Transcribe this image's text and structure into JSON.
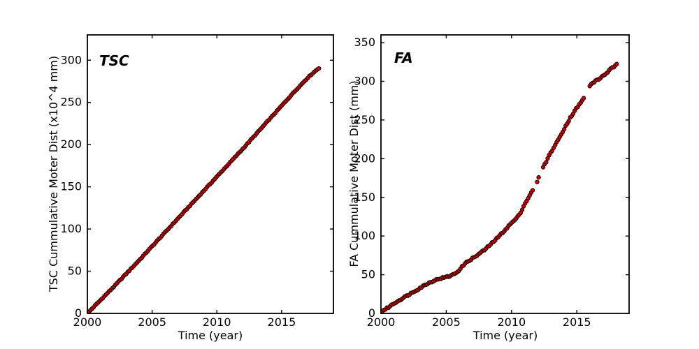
{
  "figure": {
    "background": "#ffffff",
    "text_color": "#000000",
    "axis_color": "#000000"
  },
  "chart_data": [
    {
      "id": "tsc",
      "type": "scatter",
      "title": "TSC",
      "xlabel": "Time (year)",
      "ylabel": "TSC Cummulative Moter Dist (x10^4 mm)",
      "xlim": [
        2000,
        2019
      ],
      "ylim": [
        0,
        330
      ],
      "xticks": [
        2000,
        2005,
        2010,
        2015
      ],
      "yticks": [
        0,
        50,
        100,
        150,
        200,
        250,
        300
      ],
      "grid": false,
      "legend": null,
      "marker": {
        "shape": "circle",
        "fill": "#cc0000",
        "edge": "#1a0000",
        "radius": 2.7
      },
      "sampling": {
        "step_years": 0.12,
        "jitter": 0.5
      },
      "gaps": [],
      "anchors": [
        [
          2000,
          0
        ],
        [
          2001,
          15.5
        ],
        [
          2002,
          31
        ],
        [
          2003,
          47
        ],
        [
          2004,
          63
        ],
        [
          2005,
          79.5
        ],
        [
          2006,
          96
        ],
        [
          2007,
          112.5
        ],
        [
          2008,
          129
        ],
        [
          2009,
          145.5
        ],
        [
          2010,
          162
        ],
        [
          2011,
          178.5
        ],
        [
          2012,
          195
        ],
        [
          2013,
          212
        ],
        [
          2014,
          229
        ],
        [
          2015,
          246
        ],
        [
          2016,
          263
        ],
        [
          2017,
          279
        ],
        [
          2017.4,
          284.5
        ],
        [
          2017.7,
          288.5
        ],
        [
          2017.95,
          291.5
        ]
      ]
    },
    {
      "id": "fa",
      "type": "scatter",
      "title": "FA",
      "xlabel": "Time (year)",
      "ylabel": "FA Cummulative Moter Dist (mm)",
      "xlim": [
        2000,
        2019
      ],
      "ylim": [
        0,
        360
      ],
      "xticks": [
        2000,
        2005,
        2010,
        2015
      ],
      "yticks": [
        0,
        50,
        100,
        150,
        200,
        250,
        300,
        350
      ],
      "grid": false,
      "legend": null,
      "marker": {
        "shape": "circle",
        "fill": "#cc0000",
        "edge": "#1a0000",
        "radius": 2.7
      },
      "sampling": {
        "step_years": 0.115,
        "jitter": 0.9
      },
      "gaps": [
        [
          2011.72,
          2011.92
        ],
        [
          2012.08,
          2012.38
        ],
        [
          2015.6,
          2015.93
        ]
      ],
      "anchors": [
        [
          2000,
          2
        ],
        [
          2000.5,
          7
        ],
        [
          2001,
          13
        ],
        [
          2001.5,
          18
        ],
        [
          2002,
          23
        ],
        [
          2002.5,
          28
        ],
        [
          2003,
          33
        ],
        [
          2003.5,
          38
        ],
        [
          2004,
          42
        ],
        [
          2004.5,
          45
        ],
        [
          2005,
          47
        ],
        [
          2005.4,
          49
        ],
        [
          2005.8,
          53
        ],
        [
          2006.1,
          58
        ],
        [
          2006.4,
          64
        ],
        [
          2006.8,
          69
        ],
        [
          2007.2,
          73
        ],
        [
          2007.6,
          78
        ],
        [
          2008,
          83
        ],
        [
          2008.5,
          91
        ],
        [
          2009,
          99
        ],
        [
          2009.5,
          108
        ],
        [
          2010,
          117
        ],
        [
          2010.4,
          123
        ],
        [
          2010.7,
          131
        ],
        [
          2011,
          141
        ],
        [
          2011.4,
          153
        ],
        [
          2011.7,
          161
        ],
        [
          2012,
          172
        ],
        [
          2012.4,
          188
        ],
        [
          2013,
          208
        ],
        [
          2013.5,
          222
        ],
        [
          2014,
          238
        ],
        [
          2014.5,
          253
        ],
        [
          2015,
          266
        ],
        [
          2015.3,
          272
        ],
        [
          2015.6,
          281
        ],
        [
          2015.95,
          294
        ],
        [
          2016.3,
          299
        ],
        [
          2016.7,
          303
        ],
        [
          2017,
          307
        ],
        [
          2017.3,
          311
        ],
        [
          2017.6,
          316
        ],
        [
          2017.85,
          319
        ],
        [
          2018.1,
          322
        ]
      ]
    }
  ]
}
